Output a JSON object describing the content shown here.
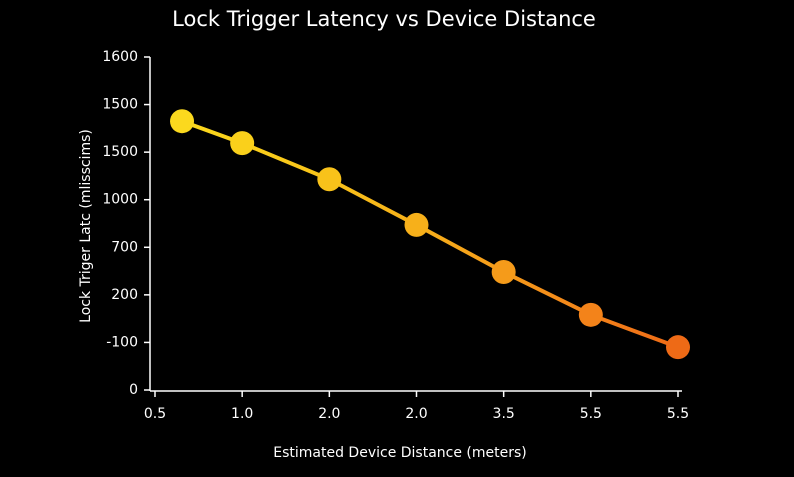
{
  "chart_data": {
    "type": "line",
    "title": "Lock Trigger Latency vs Device Distance",
    "x_label": "Estimated Device Distance (meters)",
    "y_label": "Lock Triger Latc (mlisscims)",
    "x": [
      0.31,
      1,
      2,
      3,
      4,
      5,
      6
    ],
    "values": [
      5.65,
      5.19,
      4.43,
      3.47,
      2.48,
      1.58,
      0.9
    ],
    "point_colors": [
      "#fbd91e",
      "#fad01b",
      "#f8c21a",
      "#f7b01a",
      "#f59b1a",
      "#f3831a",
      "#ee6a16"
    ],
    "xlim": [
      0,
      6
    ],
    "xticks": [
      {
        "value": 0,
        "label": "0.5"
      },
      {
        "value": 1,
        "label": "1.0"
      },
      {
        "value": 2,
        "label": "2.0"
      },
      {
        "value": 3,
        "label": "2.0"
      },
      {
        "value": 4,
        "label": "3.5"
      },
      {
        "value": 5,
        "label": "5.5"
      },
      {
        "value": 6,
        "label": "5.5"
      }
    ],
    "ylim": [
      0,
      7
    ],
    "yticks": [
      {
        "value": 0,
        "label": "0"
      },
      {
        "value": 1,
        "label": "-100"
      },
      {
        "value": 2,
        "label": "200"
      },
      {
        "value": 3,
        "label": "700"
      },
      {
        "value": 4,
        "label": "1000"
      },
      {
        "value": 5,
        "label": "1500"
      },
      {
        "value": 6,
        "label": "1500"
      },
      {
        "value": 7,
        "label": "1600"
      }
    ]
  }
}
